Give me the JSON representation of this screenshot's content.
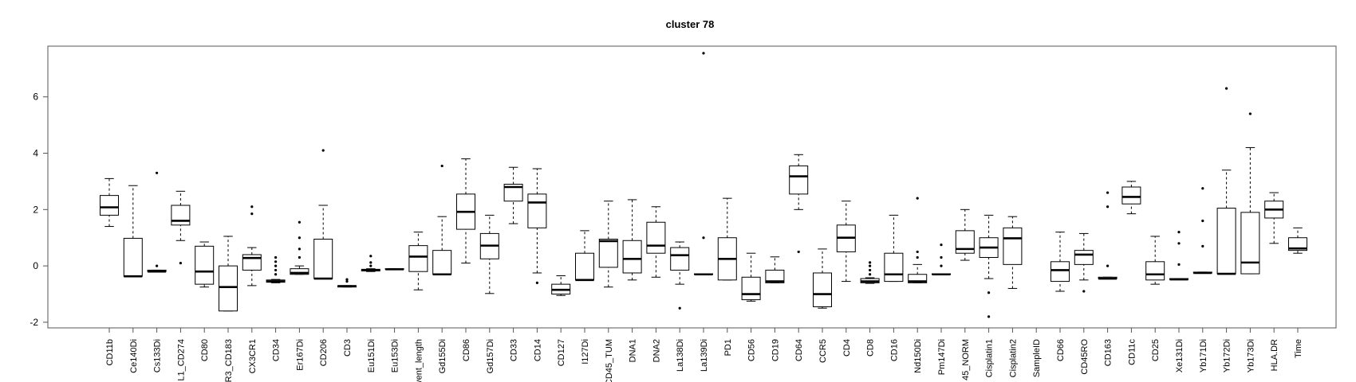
{
  "chart_data": {
    "type": "box",
    "title": "cluster 78",
    "xlabel": "",
    "ylabel": "",
    "ylim": [
      -2.2,
      7.8
    ],
    "yticks": [
      -2,
      0,
      2,
      4,
      6
    ],
    "grid": false,
    "categories": [
      "CD11b",
      "Ce140Di",
      "Cs133Di",
      "L1_CD274",
      "CD80",
      "R3_CD183",
      "CX3CR1",
      "CD34",
      "Er167Di",
      "CD206",
      "CD3",
      "Eu151Di",
      "Eu153Di",
      "vent_length",
      "Gd155Di",
      "CD86",
      "Gd157Di",
      "CD33",
      "CD14",
      "CD127",
      "I127Di",
      "CD45_TUM",
      "DNA1",
      "DNA2",
      "La138Di",
      "La139Di",
      "PD1",
      "CD56",
      "CD19",
      "CD64",
      "CCR5",
      "CD4",
      "CD8",
      "CD16",
      "Nd150Di",
      "Pm147Di",
      "45_NORM",
      "Cisplatin1",
      "Cisplatin2",
      "SampleID",
      "CD66",
      "CD45RO",
      "CD163",
      "CD11c",
      "CD25",
      "Xe131Di",
      "Yb171Di",
      "Yb172Di",
      "Yb173Di",
      "HLA.DR",
      "Time"
    ],
    "boxes": [
      {
        "whisker_low": 1.4,
        "q1": 1.8,
        "median": 2.08,
        "q3": 2.5,
        "whisker_high": 3.1,
        "outliers": []
      },
      {
        "whisker_low": -0.37,
        "q1": -0.37,
        "median": -0.37,
        "q3": 0.98,
        "whisker_high": 2.85,
        "outliers": []
      },
      {
        "whisker_low": -0.2,
        "q1": -0.2,
        "median": -0.2,
        "q3": -0.15,
        "whisker_high": -0.15,
        "outliers": [
          0.0,
          3.3
        ]
      },
      {
        "whisker_low": 0.9,
        "q1": 1.45,
        "median": 1.6,
        "q3": 2.15,
        "whisker_high": 2.65,
        "outliers": [
          0.1
        ]
      },
      {
        "whisker_low": -0.75,
        "q1": -0.65,
        "median": -0.2,
        "q3": 0.7,
        "whisker_high": 0.85,
        "outliers": []
      },
      {
        "whisker_low": -1.6,
        "q1": -1.6,
        "median": -0.75,
        "q3": 0.0,
        "whisker_high": 1.05,
        "outliers": []
      },
      {
        "whisker_low": -0.7,
        "q1": -0.15,
        "median": 0.28,
        "q3": 0.4,
        "whisker_high": 0.65,
        "outliers": [
          1.85,
          2.1
        ]
      },
      {
        "whisker_low": -0.6,
        "q1": -0.58,
        "median": -0.55,
        "q3": -0.5,
        "whisker_high": -0.48,
        "outliers": [
          -0.3,
          -0.15,
          0.0,
          0.15,
          0.3
        ]
      },
      {
        "whisker_low": -0.3,
        "q1": -0.3,
        "median": -0.25,
        "q3": -0.1,
        "whisker_high": 0.0,
        "outliers": [
          0.3,
          0.6,
          1.0,
          1.55
        ]
      },
      {
        "whisker_low": -0.45,
        "q1": -0.45,
        "median": -0.45,
        "q3": 0.95,
        "whisker_high": 2.15,
        "outliers": [
          4.1
        ]
      },
      {
        "whisker_low": -0.75,
        "q1": -0.75,
        "median": -0.72,
        "q3": -0.7,
        "whisker_high": -0.7,
        "outliers": [
          -0.55,
          -0.48
        ]
      },
      {
        "whisker_low": -0.2,
        "q1": -0.18,
        "median": -0.15,
        "q3": -0.12,
        "whisker_high": -0.1,
        "outliers": [
          0.0,
          0.12,
          0.35
        ]
      },
      {
        "whisker_low": -0.12,
        "q1": -0.12,
        "median": -0.12,
        "q3": -0.1,
        "whisker_high": -0.1,
        "outliers": []
      },
      {
        "whisker_low": -0.85,
        "q1": -0.2,
        "median": 0.33,
        "q3": 0.72,
        "whisker_high": 1.2,
        "outliers": []
      },
      {
        "whisker_low": -0.3,
        "q1": -0.3,
        "median": -0.3,
        "q3": 0.55,
        "whisker_high": 1.75,
        "outliers": [
          3.55
        ]
      },
      {
        "whisker_low": 0.1,
        "q1": 1.3,
        "median": 1.92,
        "q3": 2.55,
        "whisker_high": 3.8,
        "outliers": []
      },
      {
        "whisker_low": -0.98,
        "q1": 0.25,
        "median": 0.72,
        "q3": 1.15,
        "whisker_high": 1.8,
        "outliers": []
      },
      {
        "whisker_low": 1.5,
        "q1": 2.3,
        "median": 2.8,
        "q3": 2.9,
        "whisker_high": 3.5,
        "outliers": []
      },
      {
        "whisker_low": -0.25,
        "q1": 1.35,
        "median": 2.25,
        "q3": 2.55,
        "whisker_high": 3.45,
        "outliers": [
          -0.6
        ]
      },
      {
        "whisker_low": -1.05,
        "q1": -1.0,
        "median": -0.85,
        "q3": -0.65,
        "whisker_high": -0.35,
        "outliers": []
      },
      {
        "whisker_low": -0.5,
        "q1": -0.5,
        "median": -0.5,
        "q3": 0.45,
        "whisker_high": 1.25,
        "outliers": []
      },
      {
        "whisker_low": -0.75,
        "q1": -0.05,
        "median": 0.88,
        "q3": 0.95,
        "whisker_high": 2.3,
        "outliers": []
      },
      {
        "whisker_low": -0.5,
        "q1": -0.25,
        "median": 0.25,
        "q3": 0.9,
        "whisker_high": 2.35,
        "outliers": []
      },
      {
        "whisker_low": -0.4,
        "q1": 0.45,
        "median": 0.72,
        "q3": 1.55,
        "whisker_high": 2.1,
        "outliers": []
      },
      {
        "whisker_low": -0.65,
        "q1": -0.15,
        "median": 0.38,
        "q3": 0.65,
        "whisker_high": 0.85,
        "outliers": [
          -1.5
        ]
      },
      {
        "whisker_low": -0.3,
        "q1": -0.3,
        "median": -0.3,
        "q3": -0.28,
        "whisker_high": -0.28,
        "outliers": [
          1.0,
          7.55
        ]
      },
      {
        "whisker_low": -0.5,
        "q1": -0.5,
        "median": 0.25,
        "q3": 1.0,
        "whisker_high": 2.4,
        "outliers": []
      },
      {
        "whisker_low": -1.25,
        "q1": -1.2,
        "median": -1.0,
        "q3": -0.4,
        "whisker_high": 0.45,
        "outliers": []
      },
      {
        "whisker_low": -0.6,
        "q1": -0.6,
        "median": -0.55,
        "q3": -0.15,
        "whisker_high": 0.32,
        "outliers": []
      },
      {
        "whisker_low": 2.0,
        "q1": 2.55,
        "median": 3.18,
        "q3": 3.55,
        "whisker_high": 3.95,
        "outliers": [
          0.5
        ]
      },
      {
        "whisker_low": -1.5,
        "q1": -1.45,
        "median": -1.0,
        "q3": -0.25,
        "whisker_high": 0.6,
        "outliers": []
      },
      {
        "whisker_low": -0.55,
        "q1": 0.5,
        "median": 1.0,
        "q3": 1.45,
        "whisker_high": 2.3,
        "outliers": []
      },
      {
        "whisker_low": -0.62,
        "q1": -0.6,
        "median": -0.55,
        "q3": -0.45,
        "whisker_high": -0.42,
        "outliers": [
          -0.3,
          -0.15,
          0.0,
          0.12
        ]
      },
      {
        "whisker_low": -0.55,
        "q1": -0.55,
        "median": -0.3,
        "q3": 0.45,
        "whisker_high": 1.8,
        "outliers": []
      },
      {
        "whisker_low": -0.6,
        "q1": -0.6,
        "median": -0.55,
        "q3": -0.3,
        "whisker_high": 0.05,
        "outliers": [
          0.3,
          0.5,
          2.4
        ]
      },
      {
        "whisker_low": -0.3,
        "q1": -0.3,
        "median": -0.3,
        "q3": -0.28,
        "whisker_high": -0.28,
        "outliers": [
          0.0,
          0.3,
          0.75
        ]
      },
      {
        "whisker_low": 0.2,
        "q1": 0.45,
        "median": 0.6,
        "q3": 1.25,
        "whisker_high": 2.0,
        "outliers": []
      },
      {
        "whisker_low": -0.45,
        "q1": 0.3,
        "median": 0.65,
        "q3": 1.0,
        "whisker_high": 1.8,
        "outliers": [
          -0.95,
          -1.8
        ]
      },
      {
        "whisker_low": -0.8,
        "q1": 0.05,
        "median": 0.98,
        "q3": 1.35,
        "whisker_high": 1.75,
        "outliers": []
      },
      {
        "whisker_low": null,
        "q1": null,
        "median": null,
        "q3": null,
        "whisker_high": null,
        "outliers": []
      },
      {
        "whisker_low": -0.9,
        "q1": -0.55,
        "median": -0.15,
        "q3": 0.15,
        "whisker_high": 1.2,
        "outliers": []
      },
      {
        "whisker_low": -0.5,
        "q1": 0.05,
        "median": 0.4,
        "q3": 0.55,
        "whisker_high": 1.15,
        "outliers": [
          -0.9
        ]
      },
      {
        "whisker_low": -0.45,
        "q1": -0.45,
        "median": -0.45,
        "q3": -0.4,
        "whisker_high": -0.4,
        "outliers": [
          0.0,
          2.1,
          2.6
        ]
      },
      {
        "whisker_low": 1.85,
        "q1": 2.2,
        "median": 2.45,
        "q3": 2.8,
        "whisker_high": 3.0,
        "outliers": []
      },
      {
        "whisker_low": -0.65,
        "q1": -0.5,
        "median": -0.3,
        "q3": 0.15,
        "whisker_high": 1.05,
        "outliers": []
      },
      {
        "whisker_low": -0.48,
        "q1": -0.48,
        "median": -0.48,
        "q3": -0.45,
        "whisker_high": -0.45,
        "outliers": [
          0.05,
          0.8,
          1.2
        ]
      },
      {
        "whisker_low": -0.25,
        "q1": -0.25,
        "median": -0.25,
        "q3": -0.22,
        "whisker_high": -0.22,
        "outliers": [
          0.7,
          1.6,
          2.75
        ]
      },
      {
        "whisker_low": -0.28,
        "q1": -0.28,
        "median": -0.28,
        "q3": 2.05,
        "whisker_high": 3.4,
        "outliers": [
          6.3
        ]
      },
      {
        "whisker_low": -0.28,
        "q1": -0.28,
        "median": 0.12,
        "q3": 1.9,
        "whisker_high": 4.2,
        "outliers": [
          5.4
        ]
      },
      {
        "whisker_low": 0.8,
        "q1": 1.7,
        "median": 2.0,
        "q3": 2.3,
        "whisker_high": 2.6,
        "outliers": []
      },
      {
        "whisker_low": 0.45,
        "q1": 0.55,
        "median": 0.62,
        "q3": 1.0,
        "whisker_high": 1.35,
        "outliers": []
      }
    ]
  }
}
